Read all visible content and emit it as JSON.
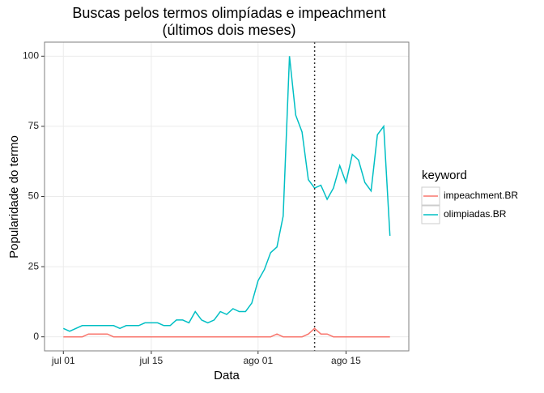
{
  "chart_data": {
    "type": "line",
    "title": "Buscas pelos termos olimpíadas e impeachment",
    "subtitle": "(últimos dois meses)",
    "x_label": "Data",
    "y_label": "Popularidade do termo",
    "legend_title": "keyword",
    "x": [
      "07-01",
      "07-02",
      "07-03",
      "07-04",
      "07-05",
      "07-06",
      "07-07",
      "07-08",
      "07-09",
      "07-10",
      "07-11",
      "07-12",
      "07-13",
      "07-14",
      "07-15",
      "07-16",
      "07-17",
      "07-18",
      "07-19",
      "07-20",
      "07-21",
      "07-22",
      "07-23",
      "07-24",
      "07-25",
      "07-26",
      "07-27",
      "07-28",
      "07-29",
      "07-30",
      "07-31",
      "08-01",
      "08-02",
      "08-03",
      "08-04",
      "08-05",
      "08-06",
      "08-07",
      "08-08",
      "08-09",
      "08-10",
      "08-11",
      "08-12",
      "08-13",
      "08-14",
      "08-15",
      "08-16",
      "08-17",
      "08-18",
      "08-19",
      "08-20",
      "08-21",
      "08-22"
    ],
    "series": [
      {
        "name": "impeachment.BR",
        "color": "#F8766D",
        "values": [
          0,
          0,
          0,
          0,
          1,
          1,
          1,
          1,
          0,
          0,
          0,
          0,
          0,
          0,
          0,
          0,
          0,
          0,
          0,
          0,
          0,
          0,
          0,
          0,
          0,
          0,
          0,
          0,
          0,
          0,
          0,
          0,
          0,
          0,
          1,
          0,
          0,
          0,
          0,
          1,
          3,
          1,
          1,
          0,
          0,
          0,
          0,
          0,
          0,
          0,
          0,
          0,
          0
        ]
      },
      {
        "name": "olimpiadas.BR",
        "color": "#00BFC4",
        "values": [
          3,
          2,
          3,
          4,
          4,
          4,
          4,
          4,
          4,
          3,
          4,
          4,
          4,
          5,
          5,
          5,
          4,
          4,
          6,
          6,
          5,
          9,
          6,
          5,
          6,
          9,
          8,
          10,
          9,
          9,
          12,
          20,
          24,
          30,
          32,
          43,
          100,
          79,
          73,
          56,
          53,
          54,
          49,
          53,
          61,
          55,
          65,
          63,
          55,
          52,
          72,
          75,
          36
        ]
      }
    ],
    "xlim": [
      "06-28",
      "08-25"
    ],
    "xticks": [
      {
        "value": "07-01",
        "label": "jul 01"
      },
      {
        "value": "07-15",
        "label": "jul 15"
      },
      {
        "value": "08-01",
        "label": "ago 01"
      },
      {
        "value": "08-15",
        "label": "ago 15"
      }
    ],
    "ylim": [
      -5,
      105
    ],
    "yticks": [
      0,
      25,
      50,
      75,
      100
    ],
    "vline": "08-10",
    "grid": true,
    "legend": "right"
  }
}
